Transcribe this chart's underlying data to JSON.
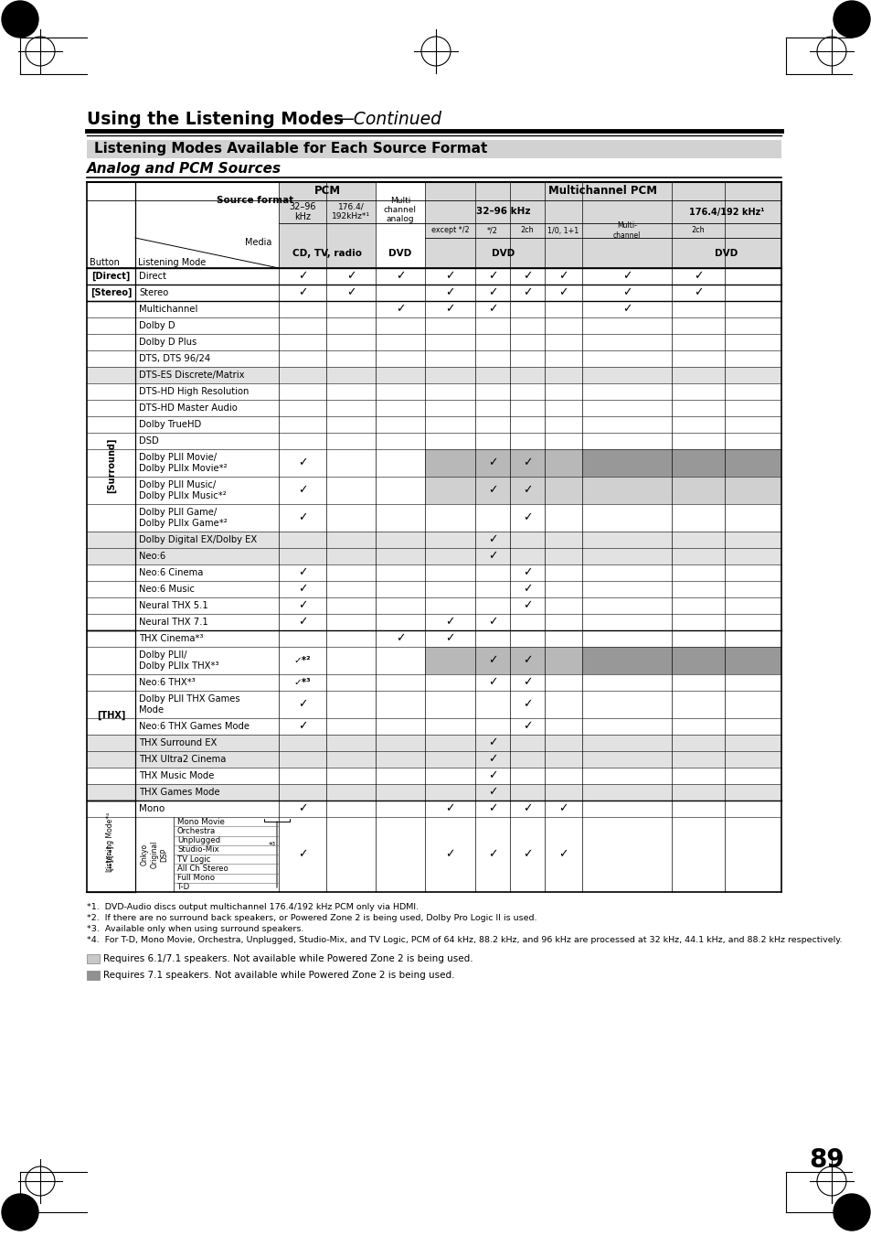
{
  "rows": [
    {
      "button": "[Direct]",
      "mode": "Direct",
      "checks": [
        1,
        1,
        1,
        1,
        1,
        1,
        1,
        1,
        1
      ]
    },
    {
      "button": "[Stereo]",
      "mode": "Stereo",
      "checks": [
        1,
        1,
        0,
        1,
        1,
        1,
        1,
        1,
        1
      ]
    },
    {
      "button": "surround",
      "mode": "Multichannel",
      "checks": [
        0,
        0,
        1,
        1,
        1,
        0,
        0,
        1,
        0
      ]
    },
    {
      "button": "surround",
      "mode": "Dolby D",
      "checks": [
        0,
        0,
        0,
        0,
        0,
        0,
        0,
        0,
        0
      ]
    },
    {
      "button": "surround",
      "mode": "Dolby D Plus",
      "checks": [
        0,
        0,
        0,
        0,
        0,
        0,
        0,
        0,
        0
      ]
    },
    {
      "button": "surround",
      "mode": "DTS, DTS 96/24",
      "checks": [
        0,
        0,
        0,
        0,
        0,
        0,
        0,
        0,
        0
      ]
    },
    {
      "button": "surround",
      "mode": "DTS-ES Discrete/Matrix",
      "checks": [
        0,
        0,
        0,
        0,
        0,
        0,
        0,
        0,
        0
      ],
      "row_bg": "lg"
    },
    {
      "button": "surround",
      "mode": "DTS-HD High Resolution",
      "checks": [
        0,
        0,
        0,
        0,
        0,
        0,
        0,
        0,
        0
      ]
    },
    {
      "button": "surround",
      "mode": "DTS-HD Master Audio",
      "checks": [
        0,
        0,
        0,
        0,
        0,
        0,
        0,
        0,
        0
      ]
    },
    {
      "button": "surround",
      "mode": "Dolby TrueHD",
      "checks": [
        0,
        0,
        0,
        0,
        0,
        0,
        0,
        0,
        0
      ]
    },
    {
      "button": "surround",
      "mode": "DSD",
      "checks": [
        0,
        0,
        0,
        0,
        0,
        0,
        0,
        0,
        0
      ]
    },
    {
      "button": "surround",
      "mode": "Dolby PLII Movie/\nDolby PLIIx Movie*²",
      "checks": [
        1,
        0,
        0,
        0,
        1,
        1,
        0,
        0,
        0
      ],
      "col_bg": {
        "3": "mg",
        "4": "mg",
        "5": "mg",
        "6": "mg",
        "7": "dg",
        "8": "dg"
      }
    },
    {
      "button": "surround",
      "mode": "Dolby PLII Music/\nDolby PLIIx Music*²",
      "checks": [
        1,
        0,
        0,
        0,
        1,
        1,
        0,
        0,
        0
      ],
      "col_bg": {
        "3": "slg",
        "4": "slg",
        "5": "slg",
        "6": "slg",
        "7": "slg",
        "8": "slg"
      }
    },
    {
      "button": "surround",
      "mode": "Dolby PLII Game/\nDolby PLIIx Game*²",
      "checks": [
        1,
        0,
        0,
        0,
        0,
        1,
        0,
        0,
        0
      ]
    },
    {
      "button": "surround",
      "mode": "Dolby Digital EX/Dolby EX",
      "checks": [
        0,
        0,
        0,
        0,
        1,
        0,
        0,
        0,
        0
      ],
      "row_bg": "lg"
    },
    {
      "button": "surround",
      "mode": "Neo:6",
      "checks": [
        0,
        0,
        0,
        0,
        1,
        0,
        0,
        0,
        0
      ],
      "row_bg": "lg"
    },
    {
      "button": "surround",
      "mode": "Neo:6 Cinema",
      "checks": [
        1,
        0,
        0,
        0,
        0,
        1,
        0,
        0,
        0
      ]
    },
    {
      "button": "surround",
      "mode": "Neo:6 Music",
      "checks": [
        1,
        0,
        0,
        0,
        0,
        1,
        0,
        0,
        0
      ]
    },
    {
      "button": "surround",
      "mode": "Neural THX 5.1",
      "checks": [
        1,
        0,
        0,
        0,
        0,
        1,
        0,
        0,
        0
      ]
    },
    {
      "button": "surround",
      "mode": "Neural THX 7.1",
      "checks": [
        1,
        0,
        0,
        1,
        1,
        0,
        0,
        0,
        0
      ]
    },
    {
      "button": "thx",
      "mode": "THX Cinema*³",
      "checks": [
        0,
        0,
        1,
        1,
        0,
        0,
        0,
        0,
        0
      ]
    },
    {
      "button": "thx",
      "mode": "Dolby PLII/\nDolby PLIIx THX*³",
      "checks": [
        2,
        0,
        0,
        0,
        1,
        1,
        0,
        0,
        0
      ],
      "col_bg": {
        "3": "mg",
        "4": "mg",
        "5": "mg",
        "6": "mg",
        "7": "dg",
        "8": "dg"
      }
    },
    {
      "button": "thx",
      "mode": "Neo:6 THX*³",
      "checks": [
        3,
        0,
        0,
        0,
        1,
        1,
        0,
        0,
        0
      ]
    },
    {
      "button": "thx",
      "mode": "Dolby PLII THX Games\nMode",
      "checks": [
        1,
        0,
        0,
        0,
        0,
        1,
        0,
        0,
        0
      ]
    },
    {
      "button": "thx",
      "mode": "Neo:6 THX Games Mode",
      "checks": [
        1,
        0,
        0,
        0,
        0,
        1,
        0,
        0,
        0
      ]
    },
    {
      "button": "thx",
      "mode": "THX Surround EX",
      "checks": [
        0,
        0,
        0,
        0,
        1,
        0,
        0,
        0,
        0
      ],
      "row_bg": "lg"
    },
    {
      "button": "thx",
      "mode": "THX Ultra2 Cinema",
      "checks": [
        0,
        0,
        0,
        0,
        1,
        0,
        0,
        0,
        0
      ],
      "row_bg": "lg"
    },
    {
      "button": "thx",
      "mode": "THX Music Mode",
      "checks": [
        0,
        0,
        0,
        0,
        1,
        0,
        0,
        0,
        0
      ]
    },
    {
      "button": "thx",
      "mode": "THX Games Mode",
      "checks": [
        0,
        0,
        0,
        0,
        1,
        0,
        0,
        0,
        0
      ],
      "row_bg": "lg"
    },
    {
      "button": "mono",
      "mode": "Mono",
      "checks": [
        1,
        0,
        0,
        1,
        1,
        1,
        1,
        0,
        0
      ]
    },
    {
      "button": "lm",
      "mode": "DSP",
      "checks": [
        1,
        0,
        0,
        1,
        1,
        1,
        1,
        0,
        0
      ]
    }
  ],
  "dsp_modes": [
    "Mono Movie",
    "Orchestra",
    "Unplugged",
    "Studio-Mix",
    "TV Logic",
    "All Ch Stereo",
    "Full Mono",
    "T-D"
  ],
  "footnotes": [
    "*1.  DVD-Audio discs output multichannel 176.4/192 kHz PCM only via HDMI.",
    "*2.  If there are no surround back speakers, or Powered Zone 2 is being used, Dolby Pro Logic II is used.",
    "*3.  Available only when using surround speakers.",
    "*4.  For T-D, Mono Movie, Orchestra, Unplugged, Studio-Mix, and TV Logic, PCM of 64 kHz, 88.2 kHz, and 96 kHz are processed at 32 kHz, 44.1 kHz, and 88.2 kHz respectively."
  ],
  "legend": [
    {
      "color": "#c8c8c8",
      "text": "Requires 6.1/7.1 speakers. Not available while Powered Zone 2 is being used."
    },
    {
      "color": "#909090",
      "text": "Requires 7.1 speakers. Not available while Powered Zone 2 is being used."
    }
  ]
}
